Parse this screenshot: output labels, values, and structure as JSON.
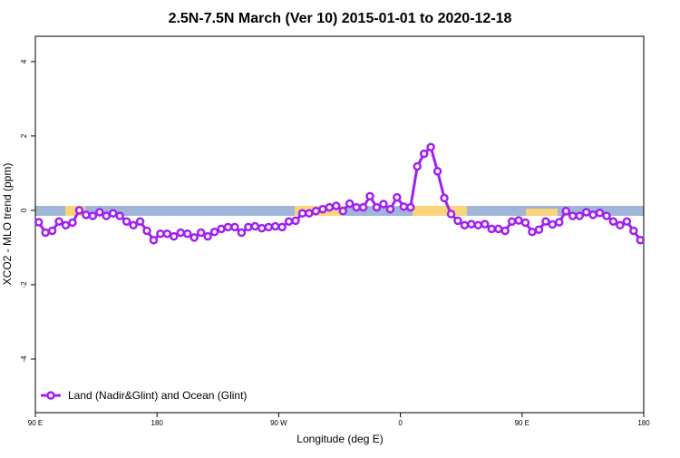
{
  "chart_data": {
    "type": "line",
    "title": "2.5N-7.5N March (Ver 10)   2015-01-01 to 2020-12-18",
    "x_label": "Longitude (deg E)",
    "y_label": "XCO2 - MLO trend (ppm)",
    "xlim": [
      90,
      540
    ],
    "xticks": [
      {
        "value": 90,
        "label": "90 E"
      },
      180,
      {
        "value": 270,
        "label": "90 W"
      },
      {
        "value": 360,
        "label": "0"
      },
      {
        "value": 450,
        "label": "90 E"
      },
      {
        "value": 540,
        "label": "180"
      }
    ],
    "ylim": [
      -5.44,
      4.68
    ],
    "yticks": [
      -4,
      -2,
      0,
      2,
      4
    ],
    "legend_position": "bottom-left",
    "series": [
      {
        "name": "Land (Nadir&Glint) and Ocean (Glint)",
        "color": "#a020f0",
        "x": [
          92.5,
          97.5,
          102.5,
          107.5,
          112.5,
          117.5,
          122.5,
          127.5,
          132.5,
          137.5,
          142.5,
          147.5,
          152.5,
          157.5,
          162.5,
          167.5,
          172.5,
          177.5,
          182.5,
          187.5,
          192.5,
          197.5,
          202.5,
          207.5,
          212.5,
          217.5,
          222.5,
          227.5,
          232.5,
          237.5,
          242.5,
          247.5,
          252.5,
          257.5,
          262.5,
          267.5,
          272.5,
          277.5,
          282.5,
          287.5,
          292.5,
          297.5,
          302.5,
          307.5,
          312.5,
          317.5,
          322.5,
          327.5,
          332.5,
          337.5,
          342.5,
          347.5,
          352.5,
          357.5,
          362.5,
          367.5,
          372.5,
          377.5,
          382.5,
          387.5,
          392.5,
          397.5,
          402.5,
          407.5,
          412.5,
          417.5,
          422.5,
          427.5,
          432.5,
          437.5,
          442.5,
          447.5,
          452.5,
          457.5,
          462.5,
          467.5,
          472.5,
          477.5,
          482.5,
          487.5,
          492.5,
          497.5,
          502.5,
          507.5,
          512.5,
          517.5,
          522.5,
          527.5,
          532.5,
          537.5
        ],
        "values": [
          -0.32,
          -0.6,
          -0.55,
          -0.3,
          -0.4,
          -0.33,
          0.0,
          -0.12,
          -0.15,
          -0.05,
          -0.15,
          -0.08,
          -0.15,
          -0.3,
          -0.4,
          -0.3,
          -0.55,
          -0.8,
          -0.63,
          -0.63,
          -0.7,
          -0.6,
          -0.63,
          -0.73,
          -0.6,
          -0.7,
          -0.58,
          -0.5,
          -0.45,
          -0.45,
          -0.6,
          -0.45,
          -0.43,
          -0.48,
          -0.45,
          -0.43,
          -0.45,
          -0.3,
          -0.28,
          -0.08,
          -0.08,
          -0.02,
          0.03,
          0.08,
          0.12,
          -0.02,
          0.18,
          0.08,
          0.08,
          0.38,
          0.08,
          0.17,
          0.03,
          0.35,
          0.1,
          0.08,
          1.18,
          1.52,
          1.7,
          1.05,
          0.33,
          -0.1,
          -0.28,
          -0.4,
          -0.37,
          -0.4,
          -0.37,
          -0.5,
          -0.5,
          -0.55,
          -0.3,
          -0.27,
          -0.33,
          -0.58,
          -0.52,
          -0.3,
          -0.38,
          -0.32,
          -0.02,
          -0.15,
          -0.15,
          -0.05,
          -0.12,
          -0.07,
          -0.15,
          -0.3,
          -0.4,
          -0.3,
          -0.55,
          -0.8
        ]
      }
    ]
  }
}
